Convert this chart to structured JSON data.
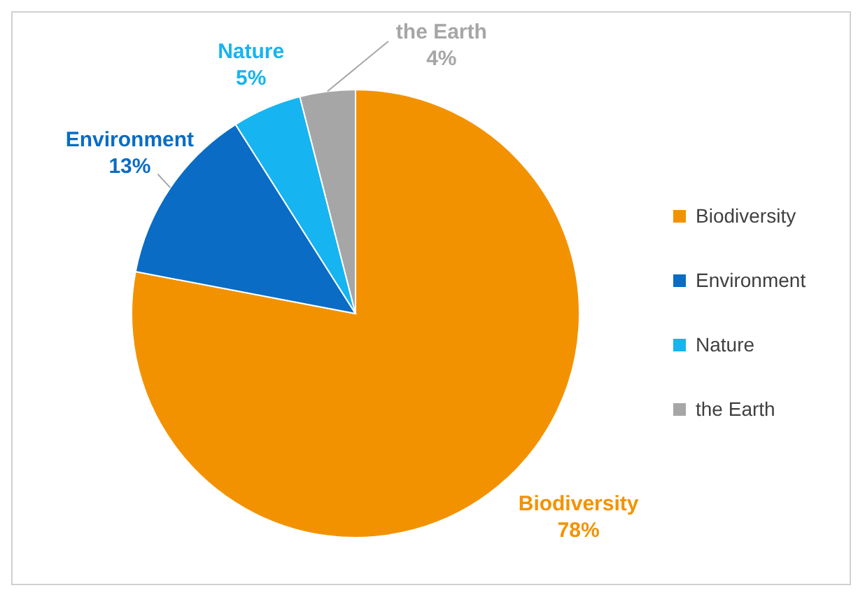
{
  "chart_data": {
    "type": "pie",
    "categories": [
      "Biodiversity",
      "Environment",
      "Nature",
      "the Earth"
    ],
    "values": [
      78,
      13,
      5,
      4
    ],
    "colors": [
      "#f39200",
      "#0a6cc4",
      "#16b4f0",
      "#a6a6a6"
    ],
    "value_labels": [
      "78%",
      "13%",
      "5%",
      "4%"
    ],
    "legend": "right"
  }
}
